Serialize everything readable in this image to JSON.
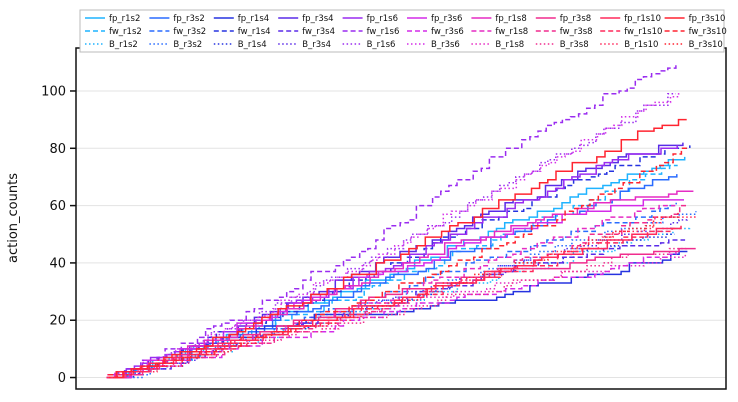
{
  "chart_data": {
    "type": "line",
    "title": "",
    "xlabel": "",
    "ylabel": "action_counts",
    "ylim": [
      -4,
      115
    ],
    "xlim": [
      0,
      100
    ],
    "grid": "y",
    "legend_position": "top",
    "yticks": [
      0,
      20,
      40,
      60,
      80,
      100
    ],
    "ytick_labels": [
      "0",
      "20",
      "40",
      "60",
      "80",
      "100"
    ],
    "series": [
      {
        "name": "fp_r1s2",
        "color": "#1fb3ff",
        "dash": "solid",
        "values": [
          0,
          8,
          16,
          24,
          33,
          42,
          52,
          61,
          69,
          78
        ]
      },
      {
        "name": "fw_r1s2",
        "color": "#1fb3ff",
        "dash": "dashed",
        "values": [
          0,
          7,
          15,
          22,
          30,
          39,
          48,
          57,
          66,
          74
        ]
      },
      {
        "name": "B_r1s2",
        "color": "#1fb3ff",
        "dash": "dotted",
        "values": [
          0,
          5,
          11,
          17,
          23,
          29,
          35,
          41,
          47,
          53
        ]
      },
      {
        "name": "fp_r3s2",
        "color": "#2a6cff",
        "dash": "solid",
        "values": [
          0,
          7,
          15,
          23,
          31,
          39,
          47,
          55,
          63,
          72
        ]
      },
      {
        "name": "fw_r3s2",
        "color": "#2a6cff",
        "dash": "dashed",
        "values": [
          0,
          6,
          13,
          20,
          27,
          34,
          41,
          48,
          54,
          61
        ]
      },
      {
        "name": "B_r3s2",
        "color": "#2a6cff",
        "dash": "dotted",
        "values": [
          0,
          6,
          13,
          20,
          26,
          33,
          39,
          46,
          52,
          58
        ]
      },
      {
        "name": "fp_r1s4",
        "color": "#2633e0",
        "dash": "solid",
        "values": [
          0,
          7,
          15,
          20,
          22,
          24,
          28,
          33,
          38,
          43
        ]
      },
      {
        "name": "fw_r1s4",
        "color": "#2633e0",
        "dash": "dashed",
        "values": [
          0,
          8,
          17,
          26,
          36,
          46,
          56,
          66,
          74,
          81
        ]
      },
      {
        "name": "B_r1s4",
        "color": "#2633e0",
        "dash": "dotted",
        "values": [
          0,
          6,
          12,
          18,
          24,
          30,
          36,
          41,
          46,
          50
        ]
      },
      {
        "name": "fp_r3s4",
        "color": "#5a2be8",
        "dash": "solid",
        "values": [
          0,
          8,
          18,
          28,
          38,
          48,
          58,
          68,
          77,
          82
        ]
      },
      {
        "name": "fw_r3s4",
        "color": "#5a2be8",
        "dash": "dashed",
        "values": [
          0,
          6,
          12,
          18,
          24,
          30,
          36,
          41,
          45,
          47
        ]
      },
      {
        "name": "B_r3s4",
        "color": "#5a2be8",
        "dash": "dotted",
        "values": [
          0,
          6,
          12,
          19,
          25,
          31,
          37,
          43,
          49,
          55
        ]
      },
      {
        "name": "fp_r1s6",
        "color": "#9a2cf0",
        "dash": "solid",
        "values": [
          0,
          8,
          17,
          26,
          35,
          45,
          55,
          66,
          76,
          80
        ]
      },
      {
        "name": "fw_r1s6",
        "color": "#9a2cf0",
        "dash": "dashed",
        "values": [
          0,
          10,
          21,
          33,
          45,
          60,
          75,
          88,
          100,
          110
        ]
      },
      {
        "name": "B_r1s6",
        "color": "#9a2cf0",
        "dash": "dotted",
        "values": [
          0,
          9,
          19,
          29,
          40,
          52,
          64,
          76,
          88,
          100
        ]
      },
      {
        "name": "fp_r3s6",
        "color": "#d42ce8",
        "dash": "solid",
        "values": [
          0,
          9,
          18,
          27,
          35,
          42,
          49,
          55,
          60,
          62
        ]
      },
      {
        "name": "fw_r3s6",
        "color": "#d42ce8",
        "dash": "dashed",
        "values": [
          0,
          5,
          10,
          15,
          20,
          25,
          30,
          34,
          38,
          44
        ]
      },
      {
        "name": "B_r3s6",
        "color": "#d42ce8",
        "dash": "dotted",
        "values": [
          0,
          9,
          19,
          29,
          40,
          52,
          64,
          76,
          88,
          100
        ]
      },
      {
        "name": "fp_r1s8",
        "color": "#e52cc4",
        "dash": "solid",
        "values": [
          0,
          8,
          17,
          26,
          35,
          44,
          52,
          58,
          62,
          64
        ]
      },
      {
        "name": "fw_r1s8",
        "color": "#e52cc4",
        "dash": "dashed",
        "values": [
          0,
          6,
          12,
          18,
          25,
          32,
          40,
          48,
          55,
          60
        ]
      },
      {
        "name": "B_r1s8",
        "color": "#e52cc4",
        "dash": "dotted",
        "values": [
          0,
          6,
          12,
          17,
          22,
          27,
          31,
          35,
          38,
          42
        ]
      },
      {
        "name": "fp_r3s8",
        "color": "#f02c8e",
        "dash": "solid",
        "values": [
          0,
          6,
          13,
          20,
          27,
          32,
          36,
          39,
          42,
          45
        ]
      },
      {
        "name": "fw_r3s8",
        "color": "#f02c8e",
        "dash": "dashed",
        "values": [
          0,
          5,
          11,
          17,
          23,
          30,
          37,
          45,
          53,
          60
        ]
      },
      {
        "name": "B_r3s8",
        "color": "#f02c8e",
        "dash": "dotted",
        "values": [
          0,
          5,
          10,
          15,
          20,
          26,
          31,
          36,
          41,
          46
        ]
      },
      {
        "name": "fp_r1s10",
        "color": "#ff2a5c",
        "dash": "solid",
        "values": [
          0,
          6,
          12,
          18,
          24,
          30,
          36,
          42,
          48,
          53
        ]
      },
      {
        "name": "fw_r1s10",
        "color": "#ff2a5c",
        "dash": "dashed",
        "values": [
          0,
          5,
          11,
          17,
          23,
          29,
          35,
          41,
          47,
          53
        ]
      },
      {
        "name": "B_r1s10",
        "color": "#ff2a5c",
        "dash": "dotted",
        "values": [
          0,
          6,
          12,
          18,
          24,
          30,
          37,
          44,
          51,
          58
        ]
      },
      {
        "name": "fp_r3s10",
        "color": "#ff2430",
        "dash": "solid",
        "values": [
          0,
          8,
          17,
          27,
          38,
          49,
          60,
          71,
          82,
          91
        ]
      },
      {
        "name": "fw_r3s10",
        "color": "#ff2430",
        "dash": "dashed",
        "values": [
          0,
          6,
          12,
          19,
          27,
          36,
          46,
          56,
          68,
          80
        ]
      },
      {
        "name": "B_r3s10",
        "color": "#ff2430",
        "dash": "dotted",
        "values": [
          0,
          5,
          11,
          17,
          23,
          30,
          36,
          43,
          50,
          57
        ]
      }
    ]
  }
}
